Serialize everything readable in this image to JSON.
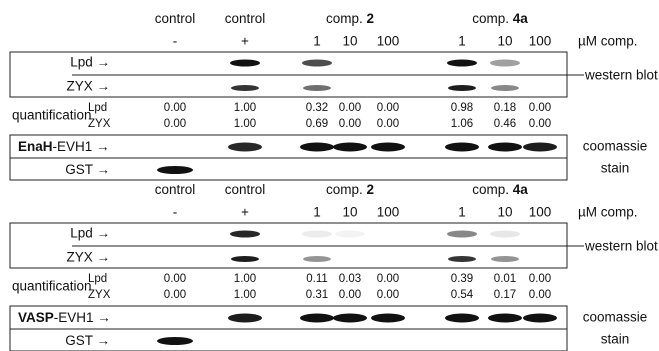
{
  "panels": [
    {
      "groups": [
        {
          "text": "control"
        },
        {
          "text": "control"
        },
        {
          "text": "comp.",
          "bold": "2"
        },
        {
          "text": "comp.",
          "bold": "4a"
        }
      ],
      "lanes": [
        "-",
        "+",
        "1",
        "10",
        "100",
        "1",
        "10",
        "100"
      ],
      "unit": "µM comp.",
      "blot_labels": [
        "Lpd →",
        "ZYX →"
      ],
      "blot_note": "western blot",
      "quantification": {
        "label": "quantification",
        "rows": [
          {
            "name": "Lpd",
            "values": [
              "0.00",
              "1.00",
              "0.32",
              "0.00",
              "0.00",
              "0.98",
              "0.18",
              "0.00"
            ]
          },
          {
            "name": "ZYX",
            "values": [
              "0.00",
              "1.00",
              "0.69",
              "0.00",
              "0.00",
              "1.06",
              "0.46",
              "0.00"
            ]
          }
        ]
      },
      "stain_labels": [
        {
          "bold": "EnaH",
          "text": "-EVH1 →"
        },
        {
          "text": "GST →"
        }
      ],
      "stain_note": [
        "coomassie",
        "stain"
      ]
    },
    {
      "groups": [
        {
          "text": "control"
        },
        {
          "text": "control"
        },
        {
          "text": "comp.",
          "bold": "2"
        },
        {
          "text": "comp.",
          "bold": "4a"
        }
      ],
      "lanes": [
        "-",
        "+",
        "1",
        "10",
        "100",
        "1",
        "10",
        "100"
      ],
      "unit": "µM comp.",
      "blot_labels": [
        "Lpd →",
        "ZYX →"
      ],
      "blot_note": "western blot",
      "quantification": {
        "label": "quantification",
        "rows": [
          {
            "name": "Lpd",
            "values": [
              "0.00",
              "1.00",
              "0.11",
              "0.03",
              "0.00",
              "0.39",
              "0.01",
              "0.00"
            ]
          },
          {
            "name": "ZYX",
            "values": [
              "0.00",
              "1.00",
              "0.31",
              "0.00",
              "0.00",
              "0.54",
              "0.17",
              "0.00"
            ]
          }
        ]
      },
      "stain_labels": [
        {
          "bold": "VASP",
          "text": "-EVH1 →"
        },
        {
          "text": "GST →"
        }
      ],
      "stain_note": [
        "coomassie",
        "stain"
      ]
    }
  ]
}
